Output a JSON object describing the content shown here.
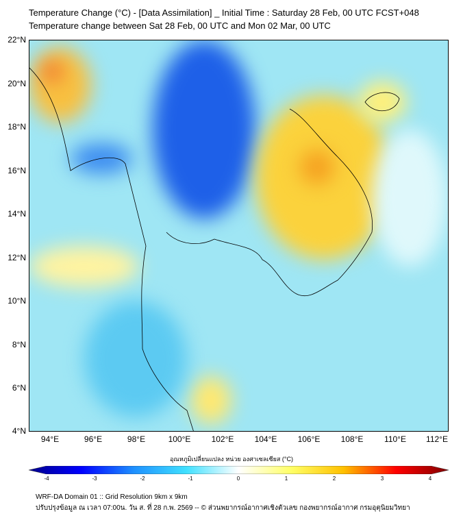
{
  "title": {
    "line1": "Temperature Change (°C) - [Data Assimilation] _ Initial Time : Saturday 28 Feb, 00 UTC FCST+048",
    "line2": "Temperature change between Sat 28 Feb, 00 UTC and Mon 02 Mar, 00 UTC"
  },
  "map": {
    "lat_labels": [
      "22°N",
      "20°N",
      "18°N",
      "16°N",
      "14°N",
      "12°N",
      "10°N",
      "8°N",
      "6°N",
      "4°N"
    ],
    "lon_labels": [
      "94°E",
      "96°E",
      "98°E",
      "100°E",
      "102°E",
      "104°E",
      "106°E",
      "108°E",
      "110°E",
      "112°E"
    ],
    "lat_range": [
      4,
      22
    ],
    "lon_range": [
      93,
      112.5
    ]
  },
  "colorbar": {
    "title": "อุณหภูมิเปลี่ยนแปลง หน่วย องศาเซลเซียส (°C)",
    "ticks": [
      "-4",
      "-3",
      "-2",
      "-1",
      "0",
      "1",
      "2",
      "3",
      "4"
    ],
    "min": -4,
    "max": 4,
    "colors": [
      "#00008b",
      "#0000ff",
      "#1e90ff",
      "#40e0ff",
      "#ffffff",
      "#ffff66",
      "#ffc000",
      "#ff0000",
      "#800000"
    ]
  },
  "footer": {
    "line1": "WRF-DA Domain 01 :: Grid Resolution 9km x 9km",
    "line2": "ปรับปรุงข้อมูล ณ เวลา 07:00น. วัน ส. ที่ 28 ก.พ. 2569 -- © ส่วนพยากรณ์อากาศเชิงตัวเลข กองพยากรณ์อากาศ กรมอุตุนิยมวิทยา"
  }
}
